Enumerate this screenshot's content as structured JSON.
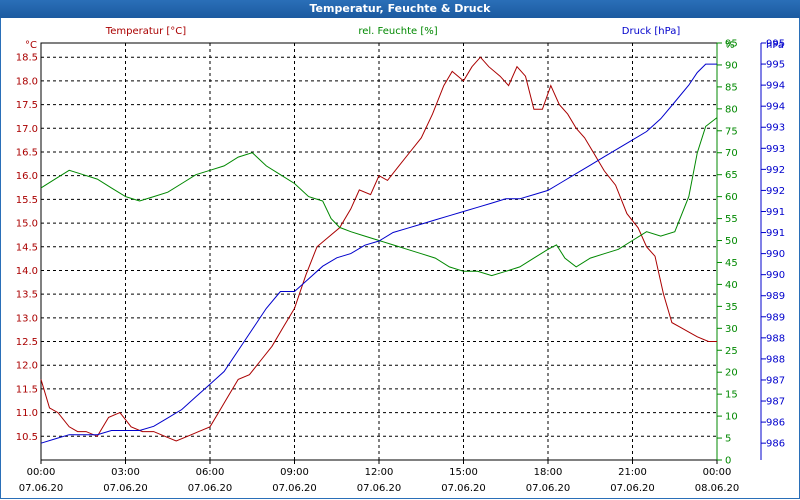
{
  "window": {
    "title": "Temperatur, Feuchte & Druck"
  },
  "chart_data": {
    "type": "line",
    "title": "Temperatur, Feuchte & Druck",
    "x_ticks": [
      {
        "time": "00:00",
        "date": "07.06.20"
      },
      {
        "time": "03:00",
        "date": "07.06.20"
      },
      {
        "time": "06:00",
        "date": "07.06.20"
      },
      {
        "time": "09:00",
        "date": "07.06.20"
      },
      {
        "time": "12:00",
        "date": "07.06.20"
      },
      {
        "time": "15:00",
        "date": "07.06.20"
      },
      {
        "time": "18:00",
        "date": "07.06.20"
      },
      {
        "time": "21:00",
        "date": "07.06.20"
      },
      {
        "time": "00:00",
        "date": "08.06.20"
      }
    ],
    "grid": true,
    "axes": {
      "left": {
        "label": "Temperatur [°C]",
        "unit": "°C",
        "ylim": [
          10.0,
          18.8
        ],
        "ticks": [
          "10.5",
          "11.0",
          "11.5",
          "12.0",
          "12.5",
          "13.0",
          "13.5",
          "14.0",
          "14.5",
          "15.0",
          "15.5",
          "16.0",
          "16.5",
          "17.0",
          "17.5",
          "18.0",
          "18.5"
        ],
        "color": "#aa0000"
      },
      "mid": {
        "label": "rel. Feuchte [%]",
        "unit": "%",
        "ylim": [
          0,
          95
        ],
        "ticks": [
          "0",
          "5",
          "10",
          "15",
          "20",
          "25",
          "30",
          "35",
          "40",
          "45",
          "50",
          "55",
          "60",
          "65",
          "70",
          "75",
          "80",
          "85",
          "90",
          "95"
        ],
        "color": "#008800"
      },
      "right": {
        "label": "Druck [hPa]",
        "unit": "hPa",
        "ylim": [
          985.6,
          995.5
        ],
        "ticks": [
          "986",
          "986",
          "987",
          "987",
          "988",
          "988",
          "989",
          "989",
          "990",
          "990",
          "991",
          "991",
          "992",
          "992",
          "993",
          "993",
          "994",
          "994",
          "995",
          "995"
        ],
        "tick_values": [
          986.0,
          986.5,
          987.0,
          987.5,
          988.0,
          988.5,
          989.0,
          989.5,
          990.0,
          990.5,
          991.0,
          991.5,
          992.0,
          992.5,
          993.0,
          993.5,
          994.0,
          994.5,
          995.0,
          995.5
        ],
        "color": "#0000cc"
      }
    },
    "series": [
      {
        "name": "Temperatur [°C]",
        "axis": "left",
        "color": "#aa0000",
        "x": [
          0,
          0.3,
          0.6,
          1.0,
          1.3,
          1.6,
          2.0,
          2.4,
          2.8,
          3.2,
          3.6,
          4.0,
          4.4,
          4.8,
          5.2,
          5.6,
          6.0,
          6.3,
          6.6,
          7.0,
          7.4,
          7.8,
          8.2,
          8.6,
          9.0,
          9.4,
          9.8,
          10.2,
          10.6,
          11.0,
          11.3,
          11.7,
          12.0,
          12.3,
          12.7,
          13.1,
          13.5,
          13.9,
          14.3,
          14.6,
          15.0,
          15.3,
          15.6,
          15.9,
          16.3,
          16.6,
          16.9,
          17.2,
          17.5,
          17.8,
          18.1,
          18.4,
          18.7,
          19.0,
          19.3,
          19.6,
          20.0,
          20.4,
          20.8,
          21.2,
          21.5,
          21.8,
          22.1,
          22.4,
          22.7,
          23.0,
          23.3,
          23.7,
          24.0
        ],
        "values": [
          11.7,
          11.1,
          11.0,
          10.7,
          10.6,
          10.6,
          10.5,
          10.9,
          11.0,
          10.7,
          10.6,
          10.6,
          10.5,
          10.4,
          10.5,
          10.6,
          10.7,
          11.0,
          11.3,
          11.7,
          11.8,
          12.1,
          12.4,
          12.8,
          13.2,
          13.9,
          14.5,
          14.7,
          14.9,
          15.3,
          15.7,
          15.6,
          16.0,
          15.9,
          16.2,
          16.5,
          16.8,
          17.3,
          17.9,
          18.2,
          18.0,
          18.3,
          18.5,
          18.3,
          18.1,
          17.9,
          18.3,
          18.1,
          17.4,
          17.4,
          17.9,
          17.5,
          17.3,
          17.0,
          16.8,
          16.5,
          16.1,
          15.8,
          15.2,
          14.9,
          14.5,
          14.3,
          13.5,
          12.9,
          12.8,
          12.7,
          12.6,
          12.5,
          12.5
        ]
      },
      {
        "name": "rel. Feuchte [%]",
        "axis": "mid",
        "color": "#008800",
        "x": [
          0,
          0.5,
          1.0,
          1.5,
          2.0,
          2.5,
          3.0,
          3.5,
          4.0,
          4.5,
          5.0,
          5.5,
          6.0,
          6.5,
          7.0,
          7.5,
          8.0,
          8.5,
          9.0,
          9.5,
          10.0,
          10.3,
          10.6,
          11.0,
          11.5,
          12.0,
          12.5,
          13.0,
          13.5,
          14.0,
          14.5,
          15.0,
          15.5,
          16.0,
          16.5,
          17.0,
          17.5,
          18.0,
          18.3,
          18.6,
          19.0,
          19.5,
          20.0,
          20.5,
          21.0,
          21.5,
          22.0,
          22.5,
          23.0,
          23.3,
          23.6,
          24.0
        ],
        "values": [
          62,
          64,
          66,
          65,
          64,
          62,
          60,
          59,
          60,
          61,
          63,
          65,
          66,
          67,
          69,
          70,
          67,
          65,
          63,
          60,
          59,
          55,
          53,
          52,
          51,
          50,
          49,
          48,
          47,
          46,
          44,
          43,
          43,
          42,
          43,
          44,
          46,
          48,
          49,
          46,
          44,
          46,
          47,
          48,
          50,
          52,
          51,
          52,
          60,
          70,
          76,
          78
        ]
      },
      {
        "name": "Druck [hPa]",
        "axis": "right",
        "color": "#0000cc",
        "x": [
          0,
          0.5,
          1.0,
          1.5,
          2.0,
          2.5,
          3.0,
          3.5,
          4.0,
          4.5,
          5.0,
          5.5,
          6.0,
          6.5,
          7.0,
          7.5,
          8.0,
          8.5,
          9.0,
          9.5,
          10.0,
          10.5,
          11.0,
          11.5,
          12.0,
          12.5,
          13.0,
          13.5,
          14.0,
          14.5,
          15.0,
          15.5,
          16.0,
          16.5,
          17.0,
          17.5,
          18.0,
          18.5,
          19.0,
          19.5,
          20.0,
          20.5,
          21.0,
          21.5,
          22.0,
          22.5,
          23.0,
          23.3,
          23.6,
          24.0
        ],
        "values": [
          986.0,
          986.1,
          986.2,
          986.2,
          986.2,
          986.3,
          986.3,
          986.3,
          986.4,
          986.6,
          986.8,
          987.1,
          987.4,
          987.7,
          988.2,
          988.7,
          989.2,
          989.6,
          989.6,
          989.9,
          990.2,
          990.4,
          990.5,
          990.7,
          990.8,
          991.0,
          991.1,
          991.2,
          991.3,
          991.4,
          991.5,
          991.6,
          991.7,
          991.8,
          991.8,
          991.9,
          992.0,
          992.2,
          992.4,
          992.6,
          992.8,
          993.0,
          993.2,
          993.4,
          993.7,
          994.1,
          994.5,
          994.8,
          995.0,
          995.0
        ]
      }
    ]
  }
}
